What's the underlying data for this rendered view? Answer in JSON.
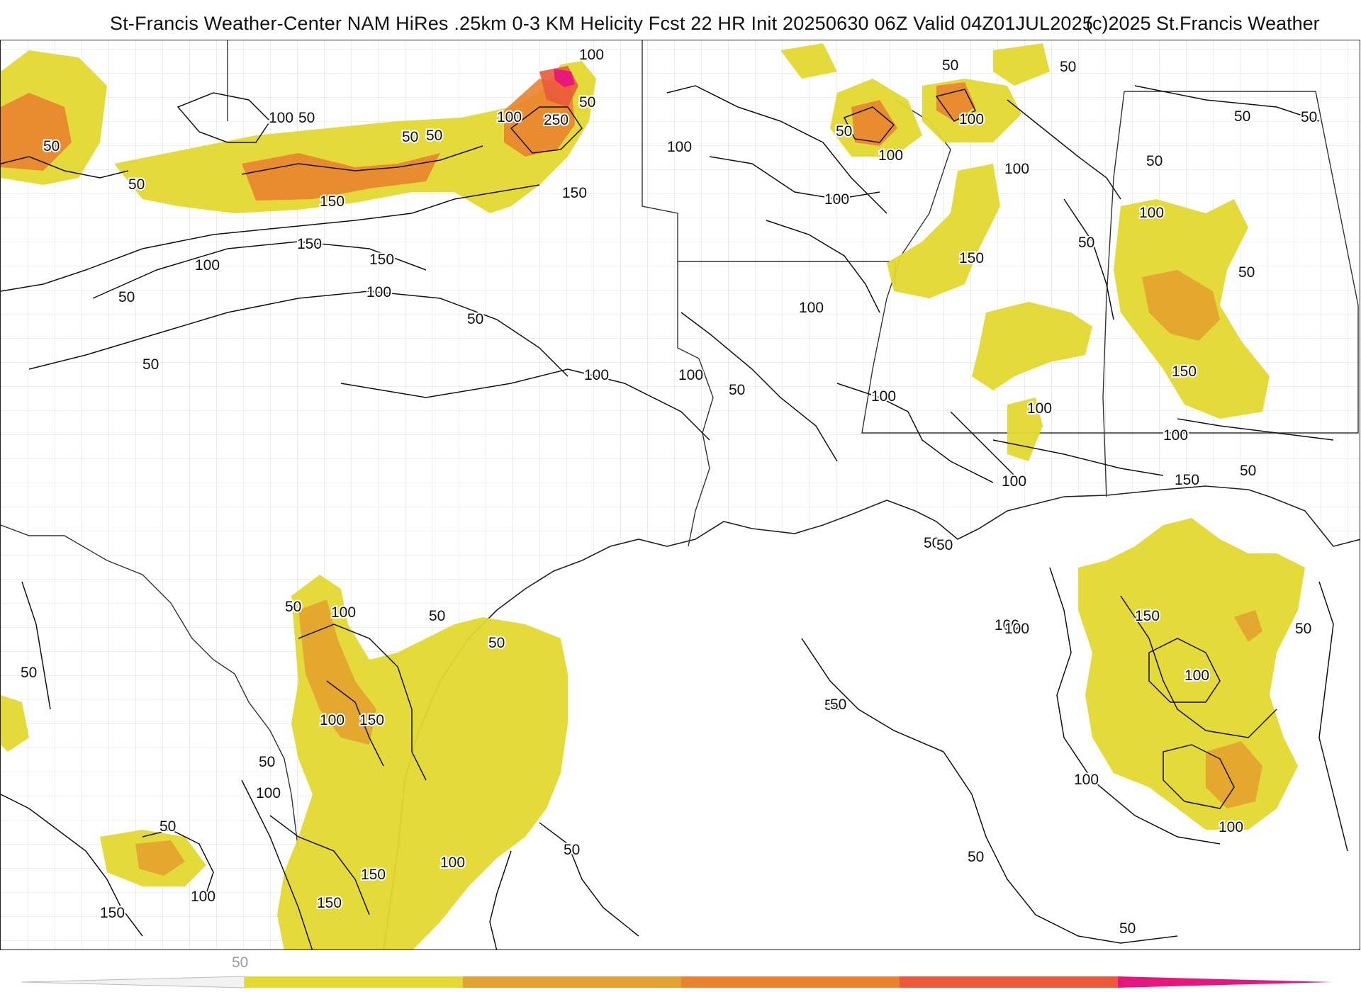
{
  "header": {
    "title": "St-Francis Weather-Center NAM HiRes .25km 0-3 KM Helicity Fcst 22 HR Init 20250630 06Z  Valid 04Z01JUL2025",
    "copyright": "(c)2025 St.Francis Weather"
  },
  "colors": {
    "shade_50": "#e3d92f",
    "shade_100": "#e3a22f",
    "shade_150": "#e8832f",
    "shade_200": "#eb5a3a",
    "shade_250": "#e8157e",
    "contour": "#111111",
    "county_border": "#c8c8c8",
    "state_border": "#333333"
  },
  "colorbar": {
    "tick_labels": [
      "50"
    ],
    "segments": [
      "#e3d92f",
      "#e3a22f",
      "#e8832f",
      "#eb5a3a",
      "#e8157e"
    ]
  },
  "contour_labels": [
    "100",
    "50",
    "50",
    "50",
    "100",
    "50",
    "250",
    "50",
    "150",
    "150",
    "150",
    "150",
    "100",
    "100",
    "50",
    "50",
    "50",
    "100",
    "50",
    "50",
    "100",
    "100",
    "50",
    "100",
    "100",
    "150",
    "100",
    "50",
    "50",
    "50",
    "150",
    "100",
    "50",
    "100",
    "100",
    "100",
    "100",
    "50",
    "100",
    "100",
    "50",
    "50",
    "50",
    "100",
    "150",
    "50",
    "100",
    "50",
    "50",
    "100",
    "150",
    "100",
    "100",
    "50",
    "50",
    "50",
    "100",
    "150",
    "150",
    "100",
    "150",
    "100",
    "50",
    "50",
    "50",
    "50",
    "50",
    "150",
    "100",
    "100",
    "50",
    "50",
    "100",
    "50"
  ]
}
